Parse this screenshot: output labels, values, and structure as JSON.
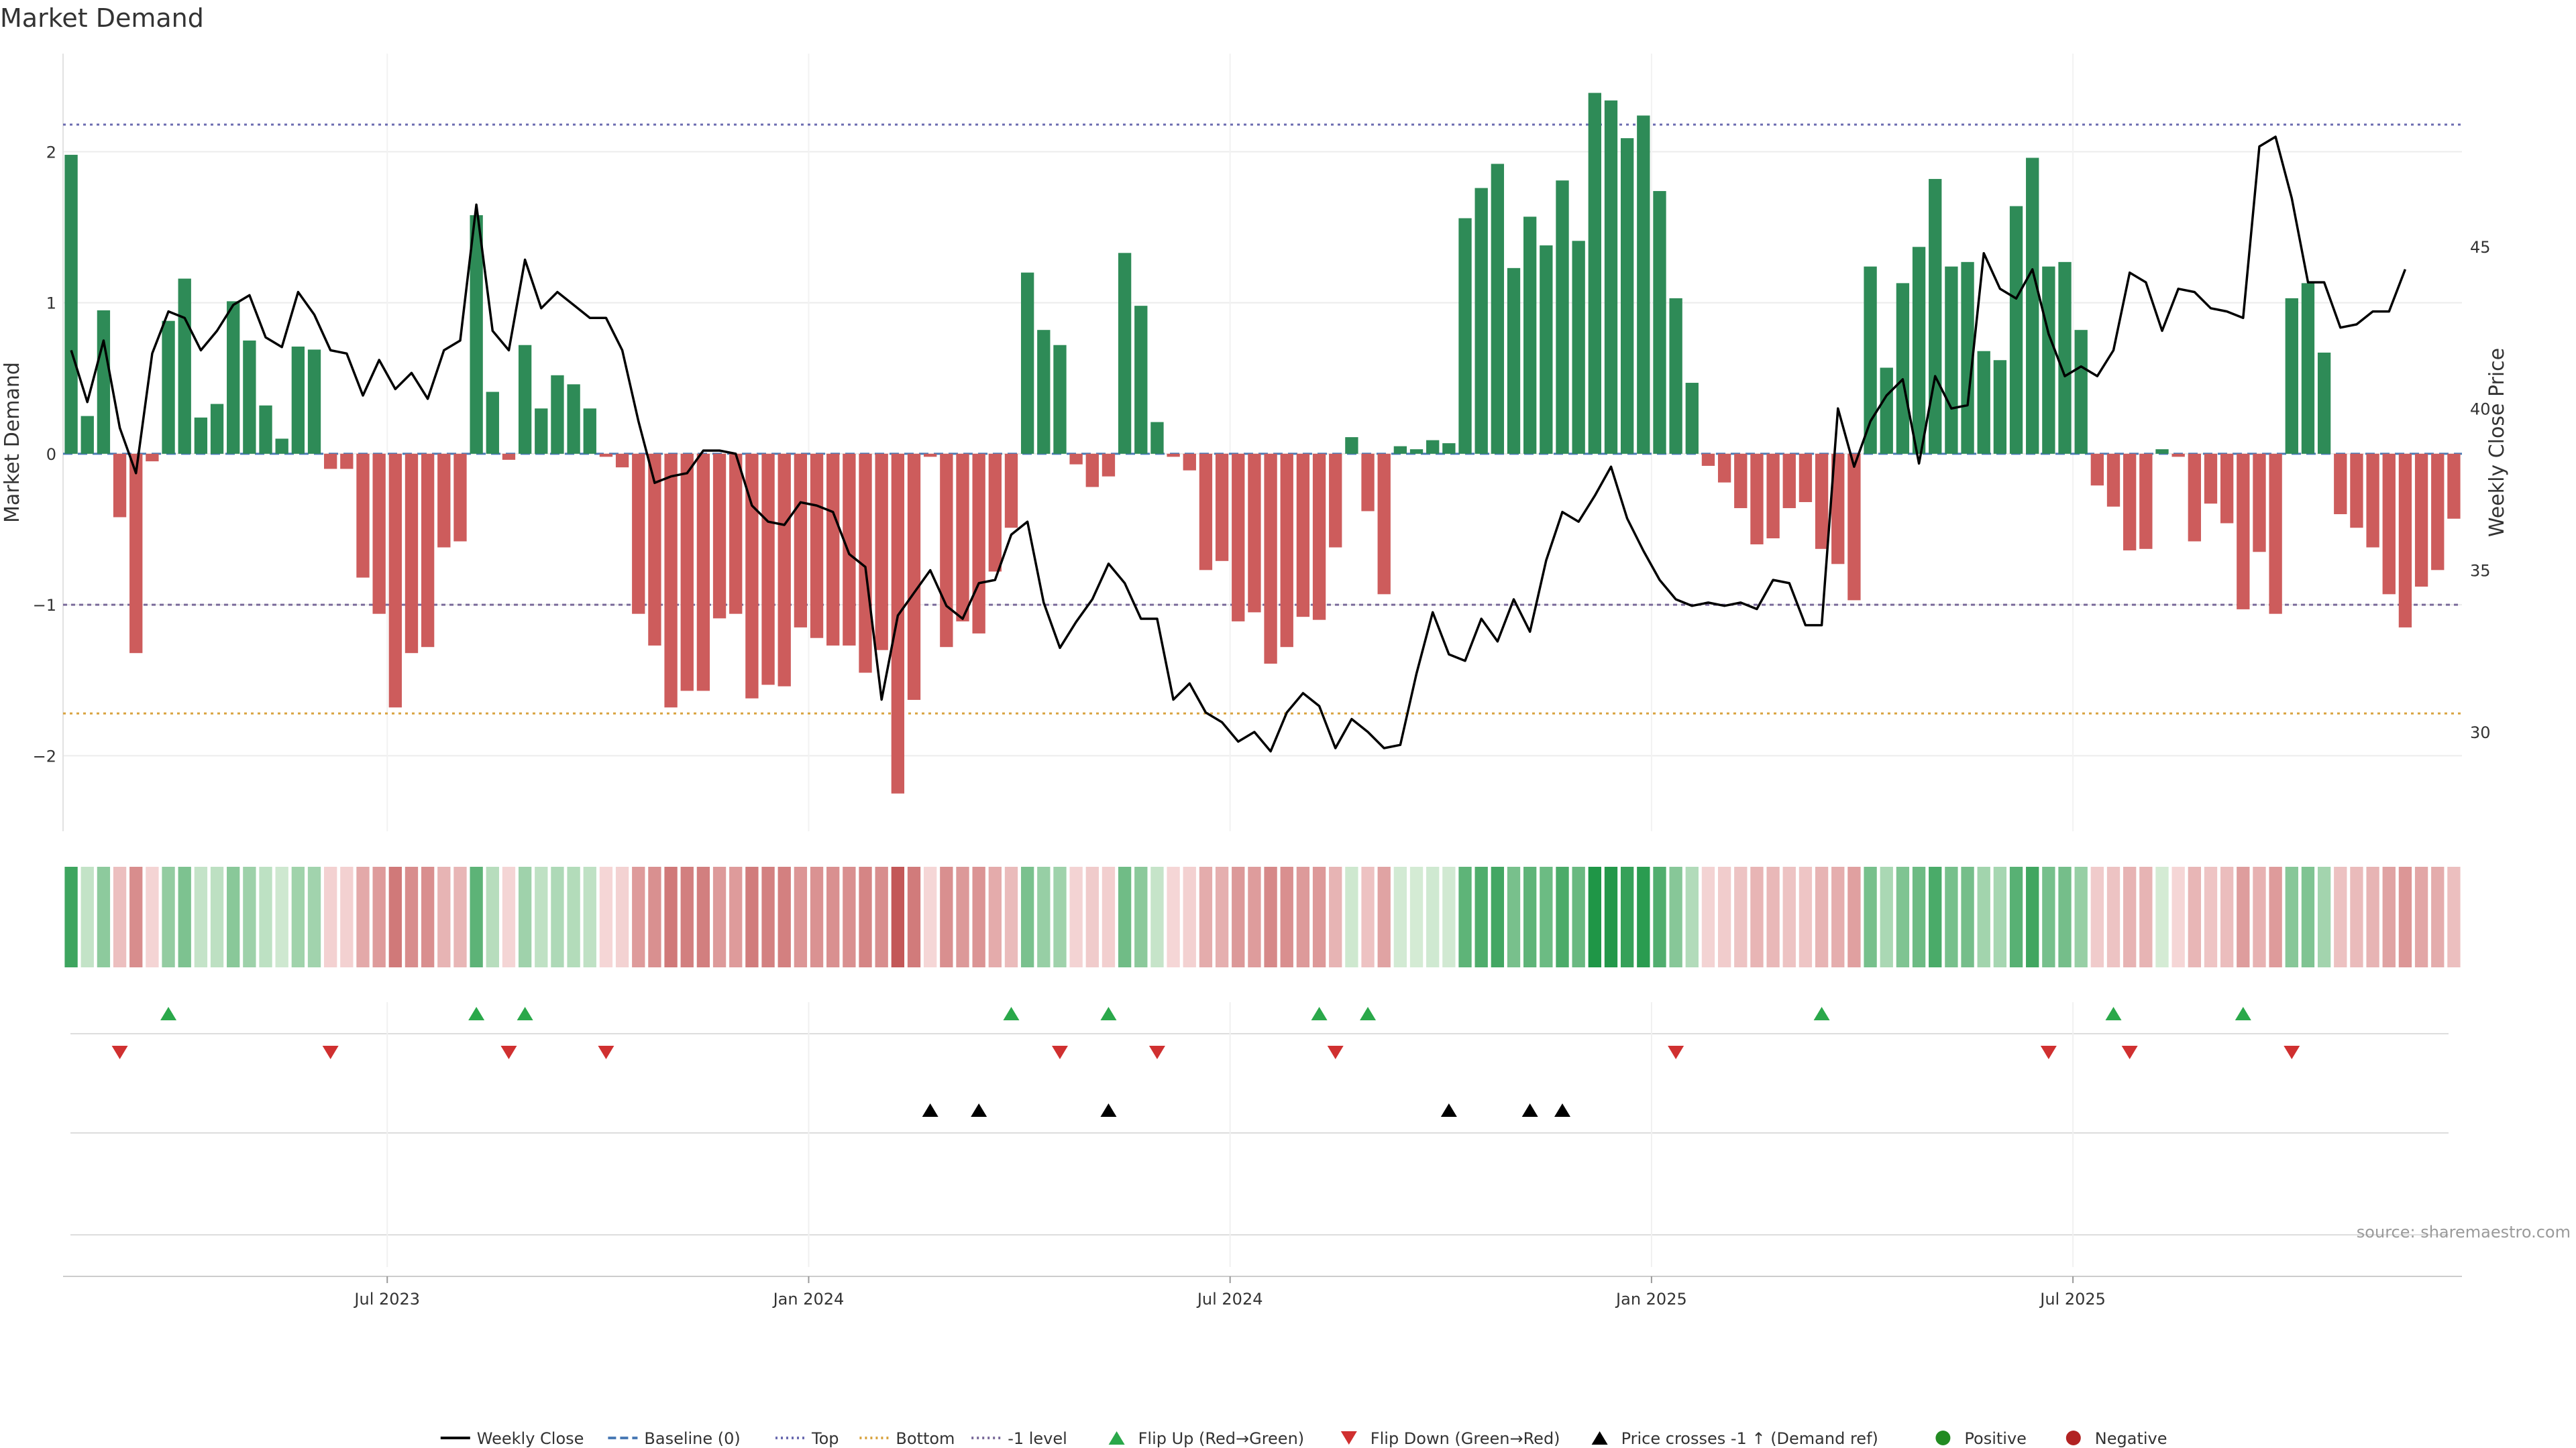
{
  "chart_data": {
    "type": "bar",
    "title": "Market Demand",
    "y_left_label": "Market Demand",
    "y_right_label": "Weekly Close Price",
    "y_left_ticks": [
      2,
      1,
      0,
      -1,
      -2
    ],
    "y_left_tick_labels": [
      "2",
      "1",
      "0",
      "−1",
      "−2"
    ],
    "y_left_range": [
      -2.5,
      2.65
    ],
    "y_right_ticks": [
      45,
      40,
      35,
      30
    ],
    "y_right_tick_labels": [
      "45",
      "40",
      "35",
      "30"
    ],
    "y_right_range": [
      26.93,
      50.97
    ],
    "x_tick_labels": [
      "Jul 2023",
      "Jan 2024",
      "Jul 2024",
      "Jan 2025",
      "Jul 2025"
    ],
    "x_tick_weeks": [
      20,
      46,
      72,
      98,
      124
    ],
    "reference_lines": {
      "top": 2.18,
      "bottom": -1.72,
      "minus_one": -1.0,
      "baseline": 0
    },
    "colors": {
      "positive": "#2e8b57",
      "negative": "#cd5c5c",
      "price": "#000000",
      "top_line": "#6b6bb0",
      "bottom_line": "#d9a441",
      "minus_one_line": "#7a6a9a",
      "baseline": "#4a7ab5",
      "flip_up": "#2aa84a",
      "flip_down": "#d03030",
      "cross": "#000000"
    },
    "demand": [
      1.98,
      0.25,
      0.95,
      -0.42,
      -1.32,
      -0.05,
      0.88,
      1.16,
      0.24,
      0.33,
      1.01,
      0.75,
      0.32,
      0.1,
      0.71,
      0.69,
      -0.1,
      -0.1,
      -0.82,
      -1.06,
      -1.68,
      -1.32,
      -1.28,
      -0.62,
      -0.58,
      1.58,
      0.41,
      -0.04,
      0.72,
      0.3,
      0.52,
      0.46,
      0.3,
      -0.02,
      -0.09,
      -1.06,
      -1.27,
      -1.68,
      -1.57,
      -1.57,
      -1.09,
      -1.06,
      -1.62,
      -1.53,
      -1.54,
      -1.15,
      -1.22,
      -1.27,
      -1.27,
      -1.45,
      -1.3,
      -2.25,
      -1.63,
      -0.02,
      -1.28,
      -1.11,
      -1.19,
      -0.78,
      -0.49,
      1.2,
      0.82,
      0.72,
      -0.07,
      -0.22,
      -0.15,
      1.33,
      0.98,
      0.21,
      -0.02,
      -0.11,
      -0.77,
      -0.71,
      -1.11,
      -1.05,
      -1.39,
      -1.28,
      -1.08,
      -1.1,
      -0.62,
      0.11,
      -0.38,
      -0.93,
      0.05,
      0.03,
      0.09,
      0.07,
      1.56,
      1.76,
      1.92,
      1.23,
      1.57,
      1.38,
      1.81,
      1.41,
      2.39,
      2.34,
      2.09,
      2.24,
      1.74,
      1.03,
      0.47,
      -0.08,
      -0.19,
      -0.36,
      -0.6,
      -0.56,
      -0.36,
      -0.32,
      -0.63,
      -0.73,
      -0.97,
      1.24,
      0.57,
      1.13,
      1.37,
      1.82,
      1.24,
      1.27,
      0.68,
      0.62,
      1.64,
      1.96,
      1.24,
      1.27,
      0.82,
      -0.21,
      -0.35,
      -0.64,
      -0.63,
      0.03,
      -0.02,
      -0.58,
      -0.33,
      -0.46,
      -1.03,
      -0.65,
      -1.06,
      1.03,
      1.13,
      0.67,
      -0.4,
      -0.49,
      -0.62,
      -0.93,
      -1.15,
      -0.88,
      -0.77,
      -0.43
    ],
    "price": [
      41.8,
      40.2,
      42.1,
      39.4,
      38.0,
      41.7,
      43.0,
      42.8,
      41.8,
      42.4,
      43.2,
      43.5,
      42.2,
      41.9,
      43.6,
      42.9,
      41.8,
      41.7,
      40.4,
      41.5,
      40.6,
      41.1,
      40.3,
      41.8,
      42.1,
      46.3,
      42.4,
      41.8,
      44.6,
      43.1,
      43.6,
      43.2,
      42.8,
      42.8,
      41.8,
      39.6,
      37.7,
      37.9,
      38.0,
      38.7,
      38.7,
      38.6,
      37.0,
      36.5,
      36.4,
      37.1,
      37.0,
      36.8,
      35.5,
      35.1,
      31.0,
      33.6,
      34.3,
      35.0,
      33.9,
      33.5,
      34.6,
      34.7,
      36.1,
      36.5,
      34.0,
      32.6,
      33.4,
      34.1,
      35.2,
      34.6,
      33.5,
      33.5,
      31.0,
      31.5,
      30.6,
      30.3,
      29.7,
      30.0,
      29.4,
      30.6,
      31.2,
      30.8,
      29.5,
      30.4,
      30.0,
      29.5,
      29.6,
      31.8,
      33.7,
      32.4,
      32.2,
      33.5,
      32.8,
      34.1,
      33.1,
      35.3,
      36.8,
      36.5,
      37.3,
      38.2,
      36.6,
      35.6,
      34.7,
      34.1,
      33.9,
      34.0,
      33.9,
      34.0,
      33.8,
      34.7,
      34.6,
      33.3,
      33.3,
      40.0,
      38.2,
      39.6,
      40.4,
      40.9,
      38.3,
      41.0,
      40.0,
      40.1,
      44.8,
      43.7,
      43.4,
      44.3,
      42.3,
      41.0,
      41.3,
      41.0,
      41.8,
      44.2,
      43.9,
      42.4,
      43.7,
      43.6,
      43.1,
      43.0,
      42.8,
      48.1,
      48.4,
      46.5,
      43.9,
      43.9,
      42.5,
      42.6,
      43.0,
      43.0,
      44.3
    ],
    "flip_up_weeks": [
      6,
      25,
      28,
      58,
      64,
      77,
      80,
      108,
      126,
      134
    ],
    "flip_down_weeks": [
      3,
      16,
      27,
      33,
      61,
      67,
      78,
      99,
      122,
      127,
      137
    ],
    "cross_up_weeks": [
      53,
      56,
      64,
      85,
      90,
      92
    ],
    "legend": [
      {
        "type": "line",
        "label": "Weekly Close",
        "color": "#000000",
        "dash": "none"
      },
      {
        "type": "line",
        "label": "Baseline (0)",
        "color": "#4a7ab5",
        "dash": "dashed"
      },
      {
        "type": "line",
        "label": "Top",
        "color": "#6b6bb0",
        "dash": "dotted"
      },
      {
        "type": "line",
        "label": "Bottom",
        "color": "#d9a441",
        "dash": "dotted"
      },
      {
        "type": "line",
        "label": "-1 level",
        "color": "#7a6a9a",
        "dash": "dotted"
      },
      {
        "type": "tri-up",
        "label": "Flip Up (Red→Green)",
        "color": "#2aa84a"
      },
      {
        "type": "tri-down",
        "label": "Flip Down (Green→Red)",
        "color": "#d03030"
      },
      {
        "type": "tri-up",
        "label": "Price crosses -1 ↑ (Demand ref)",
        "color": "#000000"
      },
      {
        "type": "dot",
        "label": "Positive",
        "color": "#228b22"
      },
      {
        "type": "dot",
        "label": "Negative",
        "color": "#b22222"
      }
    ],
    "source": "source: sharemaestro.com"
  }
}
